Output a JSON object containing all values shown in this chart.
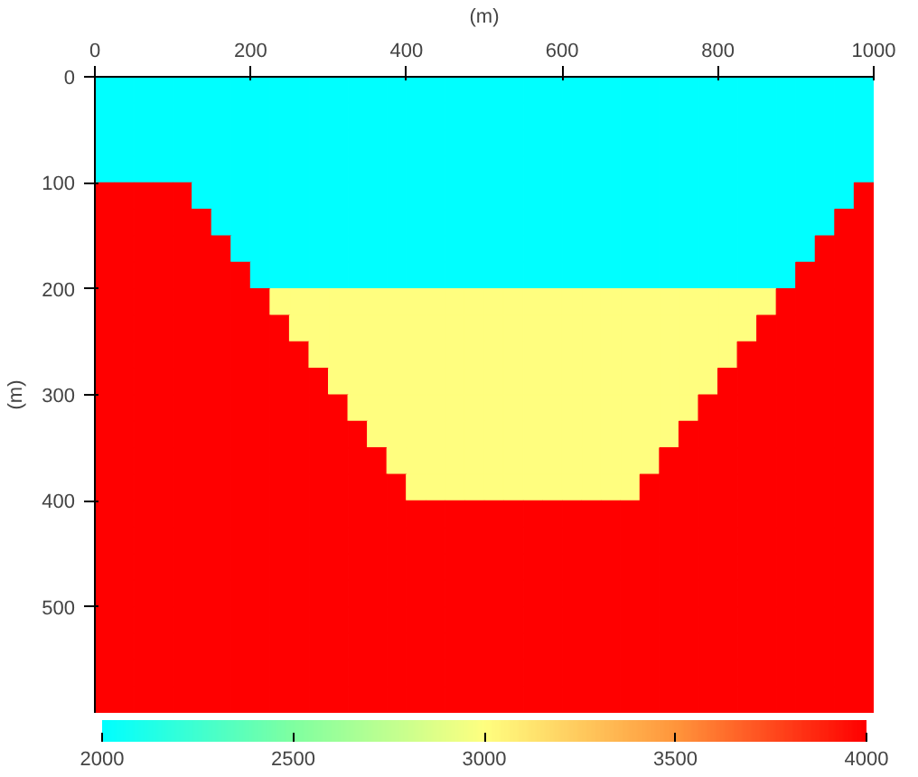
{
  "chart_data": {
    "type": "heatmap",
    "xlabel": "(m)",
    "ylabel": "(m)",
    "xlim": [
      0,
      1000
    ],
    "ylim": [
      600,
      0
    ],
    "xticks": [
      0,
      200,
      400,
      600,
      800,
      1000
    ],
    "yticks": [
      0,
      100,
      200,
      300,
      400,
      500
    ],
    "clim": [
      2000,
      4000
    ],
    "cticks": [
      2000,
      2500,
      3000,
      3500,
      4000
    ],
    "cells": [
      [
        2000,
        2000,
        2000,
        2000,
        2000,
        2000,
        2000,
        2000,
        2000,
        2000,
        2000,
        2000,
        2000,
        2000,
        2000,
        2000,
        2000,
        2000,
        2000,
        2000,
        2000,
        2000,
        2000,
        2000,
        2000,
        2000,
        2000,
        2000,
        2000,
        2000,
        2000,
        2000,
        2000,
        2000,
        2000,
        2000,
        2000,
        2000,
        2000,
        2000
      ],
      [
        2000,
        2000,
        2000,
        2000,
        2000,
        2000,
        2000,
        2000,
        2000,
        2000,
        2000,
        2000,
        2000,
        2000,
        2000,
        2000,
        2000,
        2000,
        2000,
        2000,
        2000,
        2000,
        2000,
        2000,
        2000,
        2000,
        2000,
        2000,
        2000,
        2000,
        2000,
        2000,
        2000,
        2000,
        2000,
        2000,
        2000,
        2000,
        2000,
        2000
      ],
      [
        2000,
        2000,
        2000,
        2000,
        2000,
        2000,
        2000,
        2000,
        2000,
        2000,
        2000,
        2000,
        2000,
        2000,
        2000,
        2000,
        2000,
        2000,
        2000,
        2000,
        2000,
        2000,
        2000,
        2000,
        2000,
        2000,
        2000,
        2000,
        2000,
        2000,
        2000,
        2000,
        2000,
        2000,
        2000,
        2000,
        2000,
        2000,
        2000,
        2000
      ],
      [
        2000,
        2000,
        2000,
        2000,
        2000,
        2000,
        2000,
        2000,
        2000,
        2000,
        2000,
        2000,
        2000,
        2000,
        2000,
        2000,
        2000,
        2000,
        2000,
        2000,
        2000,
        2000,
        2000,
        2000,
        2000,
        2000,
        2000,
        2000,
        2000,
        2000,
        2000,
        2000,
        2000,
        2000,
        2000,
        2000,
        2000,
        2000,
        2000,
        2000
      ],
      [
        4000,
        4000,
        4000,
        4000,
        4000,
        2000,
        2000,
        2000,
        2000,
        2000,
        2000,
        2000,
        2000,
        2000,
        2000,
        2000,
        2000,
        2000,
        2000,
        2000,
        2000,
        2000,
        2000,
        2000,
        2000,
        2000,
        2000,
        2000,
        2000,
        2000,
        2000,
        2000,
        2000,
        2000,
        2000,
        2000,
        2000,
        2000,
        2000,
        4000
      ],
      [
        4000,
        4000,
        4000,
        4000,
        4000,
        4000,
        2000,
        2000,
        2000,
        2000,
        2000,
        2000,
        2000,
        2000,
        2000,
        2000,
        2000,
        2000,
        2000,
        2000,
        2000,
        2000,
        2000,
        2000,
        2000,
        2000,
        2000,
        2000,
        2000,
        2000,
        2000,
        2000,
        2000,
        2000,
        2000,
        2000,
        2000,
        2000,
        4000,
        4000
      ],
      [
        4000,
        4000,
        4000,
        4000,
        4000,
        4000,
        4000,
        2000,
        2000,
        2000,
        2000,
        2000,
        2000,
        2000,
        2000,
        2000,
        2000,
        2000,
        2000,
        2000,
        2000,
        2000,
        2000,
        2000,
        2000,
        2000,
        2000,
        2000,
        2000,
        2000,
        2000,
        2000,
        2000,
        2000,
        2000,
        2000,
        2000,
        4000,
        4000,
        4000
      ],
      [
        4000,
        4000,
        4000,
        4000,
        4000,
        4000,
        4000,
        4000,
        2000,
        2000,
        2000,
        2000,
        2000,
        2000,
        2000,
        2000,
        2000,
        2000,
        2000,
        2000,
        2000,
        2000,
        2000,
        2000,
        2000,
        2000,
        2000,
        2000,
        2000,
        2000,
        2000,
        2000,
        2000,
        2000,
        2000,
        2000,
        4000,
        4000,
        4000,
        4000
      ],
      [
        4000,
        4000,
        4000,
        4000,
        4000,
        4000,
        4000,
        4000,
        4000,
        3000,
        3000,
        3000,
        3000,
        3000,
        3000,
        3000,
        3000,
        3000,
        3000,
        3000,
        3000,
        3000,
        3000,
        3000,
        3000,
        3000,
        3000,
        3000,
        3000,
        3000,
        3000,
        3000,
        3000,
        3000,
        3000,
        4000,
        4000,
        4000,
        4000,
        4000
      ],
      [
        4000,
        4000,
        4000,
        4000,
        4000,
        4000,
        4000,
        4000,
        4000,
        4000,
        3000,
        3000,
        3000,
        3000,
        3000,
        3000,
        3000,
        3000,
        3000,
        3000,
        3000,
        3000,
        3000,
        3000,
        3000,
        3000,
        3000,
        3000,
        3000,
        3000,
        3000,
        3000,
        3000,
        3000,
        4000,
        4000,
        4000,
        4000,
        4000,
        4000
      ],
      [
        4000,
        4000,
        4000,
        4000,
        4000,
        4000,
        4000,
        4000,
        4000,
        4000,
        4000,
        3000,
        3000,
        3000,
        3000,
        3000,
        3000,
        3000,
        3000,
        3000,
        3000,
        3000,
        3000,
        3000,
        3000,
        3000,
        3000,
        3000,
        3000,
        3000,
        3000,
        3000,
        3000,
        4000,
        4000,
        4000,
        4000,
        4000,
        4000,
        4000
      ],
      [
        4000,
        4000,
        4000,
        4000,
        4000,
        4000,
        4000,
        4000,
        4000,
        4000,
        4000,
        4000,
        3000,
        3000,
        3000,
        3000,
        3000,
        3000,
        3000,
        3000,
        3000,
        3000,
        3000,
        3000,
        3000,
        3000,
        3000,
        3000,
        3000,
        3000,
        3000,
        3000,
        4000,
        4000,
        4000,
        4000,
        4000,
        4000,
        4000,
        4000
      ],
      [
        4000,
        4000,
        4000,
        4000,
        4000,
        4000,
        4000,
        4000,
        4000,
        4000,
        4000,
        4000,
        4000,
        3000,
        3000,
        3000,
        3000,
        3000,
        3000,
        3000,
        3000,
        3000,
        3000,
        3000,
        3000,
        3000,
        3000,
        3000,
        3000,
        3000,
        3000,
        4000,
        4000,
        4000,
        4000,
        4000,
        4000,
        4000,
        4000,
        4000
      ],
      [
        4000,
        4000,
        4000,
        4000,
        4000,
        4000,
        4000,
        4000,
        4000,
        4000,
        4000,
        4000,
        4000,
        4000,
        3000,
        3000,
        3000,
        3000,
        3000,
        3000,
        3000,
        3000,
        3000,
        3000,
        3000,
        3000,
        3000,
        3000,
        3000,
        3000,
        4000,
        4000,
        4000,
        4000,
        4000,
        4000,
        4000,
        4000,
        4000,
        4000
      ],
      [
        4000,
        4000,
        4000,
        4000,
        4000,
        4000,
        4000,
        4000,
        4000,
        4000,
        4000,
        4000,
        4000,
        4000,
        4000,
        3000,
        3000,
        3000,
        3000,
        3000,
        3000,
        3000,
        3000,
        3000,
        3000,
        3000,
        3000,
        3000,
        3000,
        4000,
        4000,
        4000,
        4000,
        4000,
        4000,
        4000,
        4000,
        4000,
        4000,
        4000
      ],
      [
        4000,
        4000,
        4000,
        4000,
        4000,
        4000,
        4000,
        4000,
        4000,
        4000,
        4000,
        4000,
        4000,
        4000,
        4000,
        4000,
        3000,
        3000,
        3000,
        3000,
        3000,
        3000,
        3000,
        3000,
        3000,
        3000,
        3000,
        3000,
        4000,
        4000,
        4000,
        4000,
        4000,
        4000,
        4000,
        4000,
        4000,
        4000,
        4000,
        4000
      ],
      [
        4000,
        4000,
        4000,
        4000,
        4000,
        4000,
        4000,
        4000,
        4000,
        4000,
        4000,
        4000,
        4000,
        4000,
        4000,
        4000,
        4000,
        4000,
        4000,
        4000,
        4000,
        4000,
        4000,
        4000,
        4000,
        4000,
        4000,
        4000,
        4000,
        4000,
        4000,
        4000,
        4000,
        4000,
        4000,
        4000,
        4000,
        4000,
        4000,
        4000
      ],
      [
        4000,
        4000,
        4000,
        4000,
        4000,
        4000,
        4000,
        4000,
        4000,
        4000,
        4000,
        4000,
        4000,
        4000,
        4000,
        4000,
        4000,
        4000,
        4000,
        4000,
        4000,
        4000,
        4000,
        4000,
        4000,
        4000,
        4000,
        4000,
        4000,
        4000,
        4000,
        4000,
        4000,
        4000,
        4000,
        4000,
        4000,
        4000,
        4000,
        4000
      ],
      [
        4000,
        4000,
        4000,
        4000,
        4000,
        4000,
        4000,
        4000,
        4000,
        4000,
        4000,
        4000,
        4000,
        4000,
        4000,
        4000,
        4000,
        4000,
        4000,
        4000,
        4000,
        4000,
        4000,
        4000,
        4000,
        4000,
        4000,
        4000,
        4000,
        4000,
        4000,
        4000,
        4000,
        4000,
        4000,
        4000,
        4000,
        4000,
        4000,
        4000
      ],
      [
        4000,
        4000,
        4000,
        4000,
        4000,
        4000,
        4000,
        4000,
        4000,
        4000,
        4000,
        4000,
        4000,
        4000,
        4000,
        4000,
        4000,
        4000,
        4000,
        4000,
        4000,
        4000,
        4000,
        4000,
        4000,
        4000,
        4000,
        4000,
        4000,
        4000,
        4000,
        4000,
        4000,
        4000,
        4000,
        4000,
        4000,
        4000,
        4000,
        4000
      ],
      [
        4000,
        4000,
        4000,
        4000,
        4000,
        4000,
        4000,
        4000,
        4000,
        4000,
        4000,
        4000,
        4000,
        4000,
        4000,
        4000,
        4000,
        4000,
        4000,
        4000,
        4000,
        4000,
        4000,
        4000,
        4000,
        4000,
        4000,
        4000,
        4000,
        4000,
        4000,
        4000,
        4000,
        4000,
        4000,
        4000,
        4000,
        4000,
        4000,
        4000
      ],
      [
        4000,
        4000,
        4000,
        4000,
        4000,
        4000,
        4000,
        4000,
        4000,
        4000,
        4000,
        4000,
        4000,
        4000,
        4000,
        4000,
        4000,
        4000,
        4000,
        4000,
        4000,
        4000,
        4000,
        4000,
        4000,
        4000,
        4000,
        4000,
        4000,
        4000,
        4000,
        4000,
        4000,
        4000,
        4000,
        4000,
        4000,
        4000,
        4000,
        4000
      ],
      [
        4000,
        4000,
        4000,
        4000,
        4000,
        4000,
        4000,
        4000,
        4000,
        4000,
        4000,
        4000,
        4000,
        4000,
        4000,
        4000,
        4000,
        4000,
        4000,
        4000,
        4000,
        4000,
        4000,
        4000,
        4000,
        4000,
        4000,
        4000,
        4000,
        4000,
        4000,
        4000,
        4000,
        4000,
        4000,
        4000,
        4000,
        4000,
        4000,
        4000
      ],
      [
        4000,
        4000,
        4000,
        4000,
        4000,
        4000,
        4000,
        4000,
        4000,
        4000,
        4000,
        4000,
        4000,
        4000,
        4000,
        4000,
        4000,
        4000,
        4000,
        4000,
        4000,
        4000,
        4000,
        4000,
        4000,
        4000,
        4000,
        4000,
        4000,
        4000,
        4000,
        4000,
        4000,
        4000,
        4000,
        4000,
        4000,
        4000,
        4000,
        4000
      ]
    ]
  }
}
